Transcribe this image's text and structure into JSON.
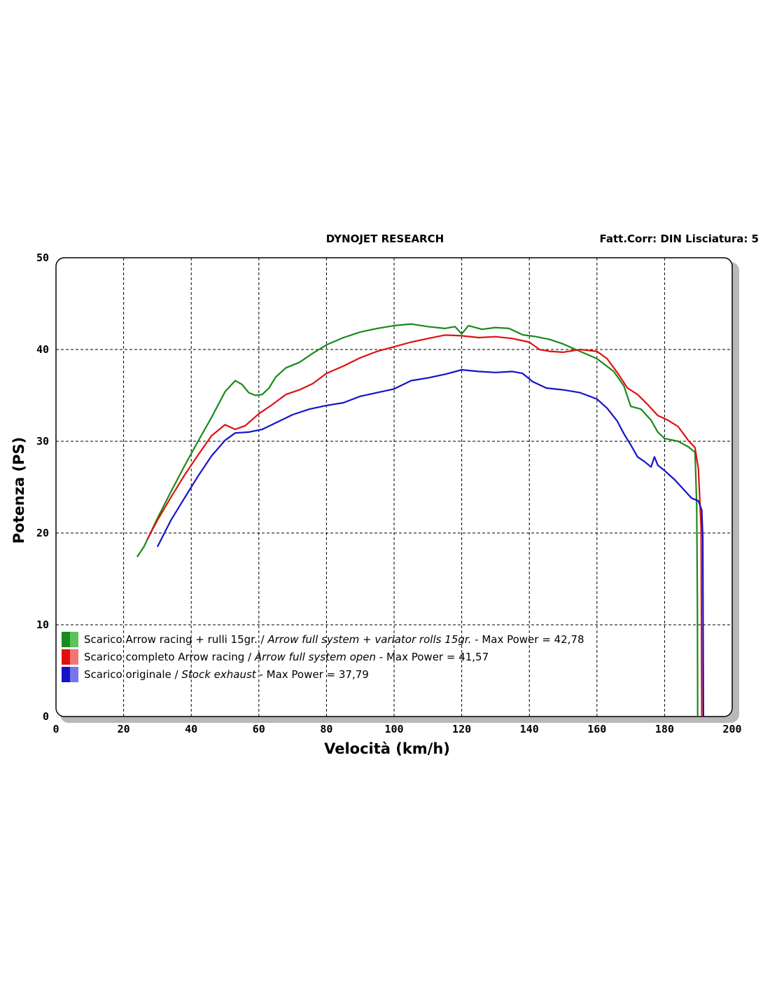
{
  "chart_data": {
    "type": "line",
    "header_left": "DYNOJET RESEARCH",
    "header_right": "Fatt.Corr: DIN  Lisciatura: 5",
    "xlabel": "Velocità (km/h)",
    "ylabel": "Potenza (PS)",
    "xlim": [
      0,
      200
    ],
    "ylim": [
      0,
      50
    ],
    "x_ticks": [
      "0",
      "20",
      "40",
      "60",
      "80",
      "100",
      "120",
      "140",
      "160",
      "180",
      "200"
    ],
    "y_ticks": [
      "0",
      "10",
      "20",
      "30",
      "40",
      "50"
    ],
    "grid": true,
    "legend_position": "bottom-left",
    "series": [
      {
        "name_plain": "Scarico Arrow racing + rulli 15gr. / ",
        "name_italic": "Arrow full system + variator rolls 15gr.",
        "name_suffix": " - Max Power = 42,78",
        "color": "#1a8a1a",
        "swatch_light": "#5cc45c",
        "points": [
          [
            24,
            17.4
          ],
          [
            26,
            18.5
          ],
          [
            30,
            21.6
          ],
          [
            34,
            24.5
          ],
          [
            38,
            27.3
          ],
          [
            42,
            30
          ],
          [
            46,
            32.6
          ],
          [
            50,
            35.4
          ],
          [
            53,
            36.6
          ],
          [
            55,
            36.2
          ],
          [
            57,
            35.3
          ],
          [
            59,
            35.0
          ],
          [
            61,
            35.1
          ],
          [
            63,
            35.8
          ],
          [
            65,
            37.0
          ],
          [
            68,
            38.0
          ],
          [
            72,
            38.6
          ],
          [
            76,
            39.6
          ],
          [
            80,
            40.5
          ],
          [
            85,
            41.3
          ],
          [
            90,
            41.9
          ],
          [
            95,
            42.3
          ],
          [
            100,
            42.6
          ],
          [
            105,
            42.78
          ],
          [
            110,
            42.5
          ],
          [
            115,
            42.3
          ],
          [
            118,
            42.5
          ],
          [
            120,
            41.7
          ],
          [
            122,
            42.6
          ],
          [
            126,
            42.2
          ],
          [
            130,
            42.4
          ],
          [
            134,
            42.3
          ],
          [
            138,
            41.6
          ],
          [
            142,
            41.4
          ],
          [
            146,
            41.1
          ],
          [
            150,
            40.6
          ],
          [
            155,
            39.8
          ],
          [
            160,
            39.0
          ],
          [
            165,
            37.6
          ],
          [
            168,
            36.0
          ],
          [
            170,
            33.8
          ],
          [
            173,
            33.5
          ],
          [
            176,
            32.3
          ],
          [
            178,
            31.0
          ],
          [
            180,
            30.3
          ],
          [
            184,
            30.0
          ],
          [
            187,
            29.4
          ],
          [
            189,
            28.8
          ],
          [
            189.5,
            23
          ],
          [
            189.7,
            12
          ],
          [
            189.8,
            0
          ]
        ]
      },
      {
        "name_plain": "Scarico completo Arrow racing / ",
        "name_italic": "Arrow full system open",
        "name_suffix": " - Max Power = 41,57",
        "color": "#e01010",
        "swatch_light": "#f07575",
        "points": [
          [
            27,
            19.3
          ],
          [
            30,
            21.4
          ],
          [
            34,
            23.9
          ],
          [
            38,
            26.3
          ],
          [
            42,
            28.5
          ],
          [
            46,
            30.6
          ],
          [
            50,
            31.8
          ],
          [
            53,
            31.3
          ],
          [
            56,
            31.7
          ],
          [
            60,
            33.0
          ],
          [
            64,
            34.0
          ],
          [
            68,
            35.1
          ],
          [
            72,
            35.6
          ],
          [
            76,
            36.3
          ],
          [
            80,
            37.4
          ],
          [
            85,
            38.2
          ],
          [
            90,
            39.1
          ],
          [
            95,
            39.8
          ],
          [
            100,
            40.3
          ],
          [
            105,
            40.8
          ],
          [
            110,
            41.2
          ],
          [
            115,
            41.57
          ],
          [
            120,
            41.5
          ],
          [
            125,
            41.3
          ],
          [
            130,
            41.4
          ],
          [
            135,
            41.2
          ],
          [
            140,
            40.8
          ],
          [
            143,
            40.0
          ],
          [
            146,
            39.8
          ],
          [
            150,
            39.7
          ],
          [
            155,
            40.0
          ],
          [
            160,
            39.8
          ],
          [
            163,
            39.0
          ],
          [
            166,
            37.5
          ],
          [
            169,
            35.8
          ],
          [
            172,
            35.1
          ],
          [
            175,
            34.0
          ],
          [
            178,
            32.8
          ],
          [
            181,
            32.3
          ],
          [
            184,
            31.6
          ],
          [
            187,
            30.1
          ],
          [
            189,
            29.3
          ],
          [
            190,
            27.0
          ],
          [
            190.5,
            23
          ],
          [
            190.8,
            20.5
          ],
          [
            191,
            0
          ]
        ]
      },
      {
        "name_plain": "Scarico originale / ",
        "name_italic": "Stock exhaust",
        "name_suffix": " - Max Power = 37,79",
        "color": "#1414c8",
        "swatch_light": "#7575f0",
        "points": [
          [
            30,
            18.5
          ],
          [
            34,
            21.4
          ],
          [
            38,
            23.8
          ],
          [
            42,
            26.2
          ],
          [
            46,
            28.4
          ],
          [
            50,
            30.1
          ],
          [
            53,
            30.9
          ],
          [
            57,
            31.0
          ],
          [
            61,
            31.3
          ],
          [
            65,
            32.0
          ],
          [
            70,
            32.9
          ],
          [
            75,
            33.5
          ],
          [
            80,
            33.9
          ],
          [
            85,
            34.2
          ],
          [
            90,
            34.9
          ],
          [
            95,
            35.3
          ],
          [
            100,
            35.7
          ],
          [
            105,
            36.6
          ],
          [
            110,
            36.9
          ],
          [
            115,
            37.3
          ],
          [
            120,
            37.79
          ],
          [
            125,
            37.6
          ],
          [
            130,
            37.5
          ],
          [
            135,
            37.6
          ],
          [
            138,
            37.4
          ],
          [
            141,
            36.5
          ],
          [
            145,
            35.8
          ],
          [
            150,
            35.6
          ],
          [
            155,
            35.3
          ],
          [
            160,
            34.6
          ],
          [
            163,
            33.6
          ],
          [
            166,
            32.2
          ],
          [
            168,
            30.8
          ],
          [
            170,
            29.6
          ],
          [
            172,
            28.3
          ],
          [
            174,
            27.8
          ],
          [
            176,
            27.2
          ],
          [
            177,
            28.3
          ],
          [
            178,
            27.4
          ],
          [
            180,
            26.8
          ],
          [
            183,
            25.8
          ],
          [
            186,
            24.6
          ],
          [
            188,
            23.8
          ],
          [
            190,
            23.5
          ],
          [
            191,
            22.5
          ],
          [
            191.3,
            19.5
          ],
          [
            191.5,
            0
          ]
        ]
      }
    ]
  }
}
